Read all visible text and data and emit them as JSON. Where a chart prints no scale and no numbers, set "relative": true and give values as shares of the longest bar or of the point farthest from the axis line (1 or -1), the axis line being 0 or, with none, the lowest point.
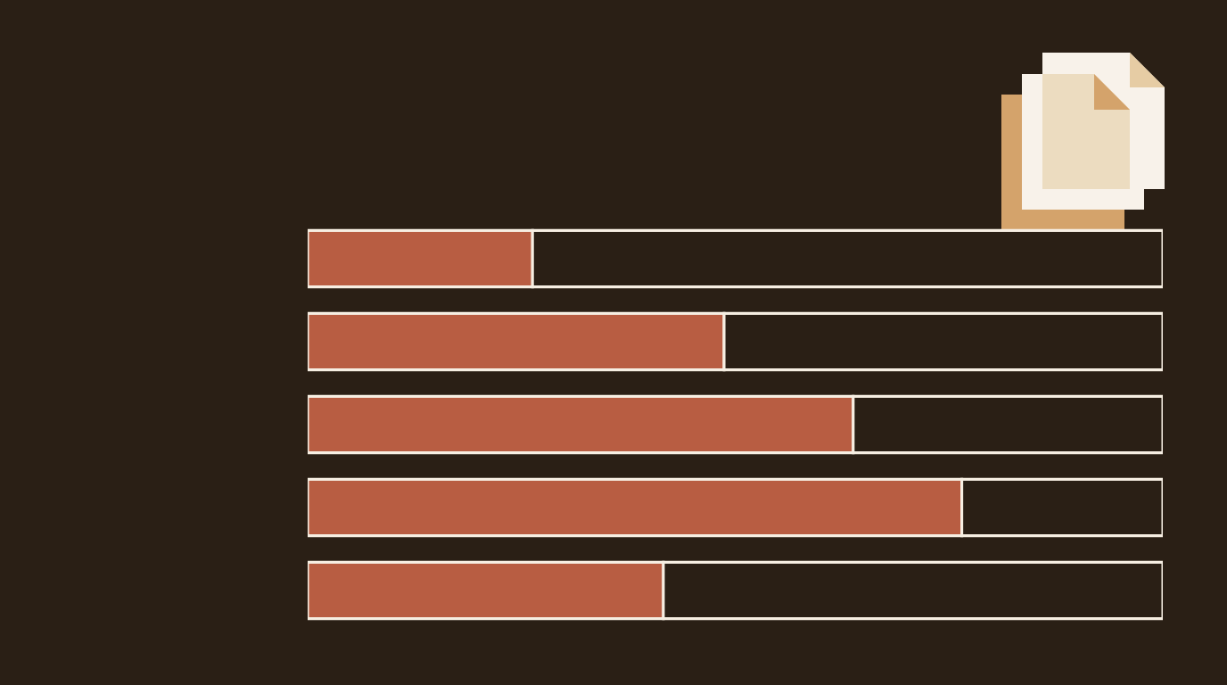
{
  "chart_data": {
    "type": "bar",
    "orientation": "horizontal",
    "stacked": true,
    "relative": true,
    "categories": [
      null,
      null,
      null,
      null,
      null
    ],
    "series": [
      {
        "color": "#b85d42",
        "values": [
          0.263,
          0.487,
          0.638,
          0.765,
          0.416
        ]
      },
      {
        "color": "#2a1f15",
        "values": [
          0.737,
          0.513,
          0.362,
          0.235,
          0.584
        ]
      }
    ]
  }
}
